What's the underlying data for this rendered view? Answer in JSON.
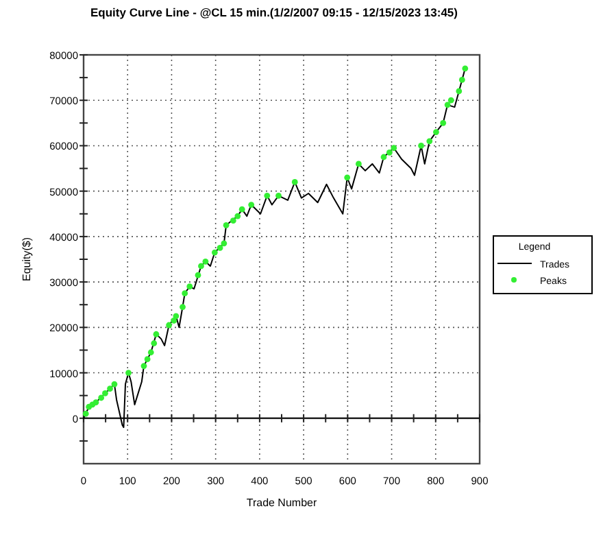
{
  "chart_data": {
    "type": "line",
    "title": "Equity Curve Line - @CL 15 min.(1/2/2007 09:15 - 12/15/2023 13:45)",
    "xlabel": "Trade Number",
    "ylabel": "Equity($)",
    "legend_title": "Legend",
    "legend": "right",
    "grid": true,
    "xlim": [
      0,
      900
    ],
    "ylim": [
      -10000,
      80000
    ],
    "xticks": [
      0,
      {
        "value": 50,
        "label": null
      },
      100,
      {
        "value": 150,
        "label": null
      },
      200,
      {
        "value": 250,
        "label": null
      },
      300,
      {
        "value": 350,
        "label": null
      },
      400,
      {
        "value": 450,
        "label": null
      },
      500,
      {
        "value": 550,
        "label": null
      },
      600,
      {
        "value": 650,
        "label": null
      },
      700,
      {
        "value": 750,
        "label": null
      },
      800,
      {
        "value": 850,
        "label": null
      },
      900
    ],
    "yticks": [
      {
        "value": -5000,
        "label": null
      },
      0,
      {
        "value": 5000,
        "label": null
      },
      10000,
      {
        "value": 15000,
        "label": null
      },
      20000,
      {
        "value": 25000,
        "label": null
      },
      30000,
      {
        "value": 35000,
        "label": null
      },
      40000,
      {
        "value": 45000,
        "label": null
      },
      50000,
      {
        "value": 55000,
        "label": null
      },
      60000,
      {
        "value": 65000,
        "label": null
      },
      70000,
      {
        "value": 75000,
        "label": null
      },
      80000
    ],
    "series": [
      {
        "name": "Trades",
        "color": "#000000",
        "marker": "none",
        "x": [
          0,
          12,
          28,
          49,
          60,
          70,
          75,
          88,
          91,
          95,
          102,
          108,
          116,
          132,
          137,
          153,
          165,
          176,
          184,
          194,
          210,
          217,
          225,
          230,
          241,
          251,
          267,
          277,
          288,
          298,
          319,
          324,
          350,
          360,
          371,
          381,
          402,
          417,
          428,
          443,
          464,
          480,
          495,
          511,
          532,
          552,
          568,
          589,
          599,
          609,
          625,
          640,
          656,
          672,
          682,
          705,
          723,
          744,
          752,
          767,
          775,
          786,
          801,
          817,
          827,
          843,
          853,
          867
        ],
        "values": [
          0,
          2500,
          3500,
          5500,
          6500,
          7500,
          4000,
          -1500,
          -2000,
          7500,
          10000,
          8000,
          3000,
          8000,
          11500,
          14500,
          18500,
          17500,
          16000,
          20500,
          22500,
          20000,
          24500,
          27500,
          29000,
          28500,
          33500,
          34500,
          33500,
          36500,
          38500,
          42500,
          44500,
          46000,
          44500,
          47000,
          45000,
          49000,
          47000,
          49000,
          48000,
          52000,
          48500,
          49500,
          47500,
          51500,
          48500,
          45000,
          53000,
          50500,
          56000,
          54500,
          56000,
          54000,
          57500,
          59500,
          57000,
          55000,
          53500,
          60000,
          56000,
          61000,
          63000,
          65000,
          69000,
          68500,
          72000,
          77000
        ]
      },
      {
        "name": "Peaks",
        "type": "scatter",
        "color": "#33ee33",
        "marker": "circle",
        "x": [
          5,
          12,
          20,
          28,
          40,
          49,
          60,
          70,
          102,
          137,
          145,
          153,
          160,
          165,
          194,
          205,
          210,
          225,
          230,
          241,
          260,
          267,
          277,
          298,
          310,
          319,
          324,
          340,
          350,
          360,
          381,
          417,
          443,
          480,
          599,
          625,
          682,
          695,
          705,
          767,
          786,
          801,
          817,
          827,
          835,
          853,
          860,
          867
        ],
        "values": [
          1000,
          2500,
          3000,
          3500,
          4500,
          5500,
          6500,
          7500,
          10000,
          11500,
          13000,
          14500,
          16500,
          18500,
          20500,
          21500,
          22500,
          24500,
          27500,
          29000,
          31500,
          33500,
          34500,
          36500,
          37500,
          38500,
          42500,
          43500,
          44500,
          46000,
          47000,
          49000,
          49000,
          52000,
          53000,
          56000,
          57500,
          58500,
          59500,
          60000,
          61000,
          63000,
          65000,
          69000,
          70000,
          72000,
          74500,
          77000
        ]
      }
    ]
  }
}
